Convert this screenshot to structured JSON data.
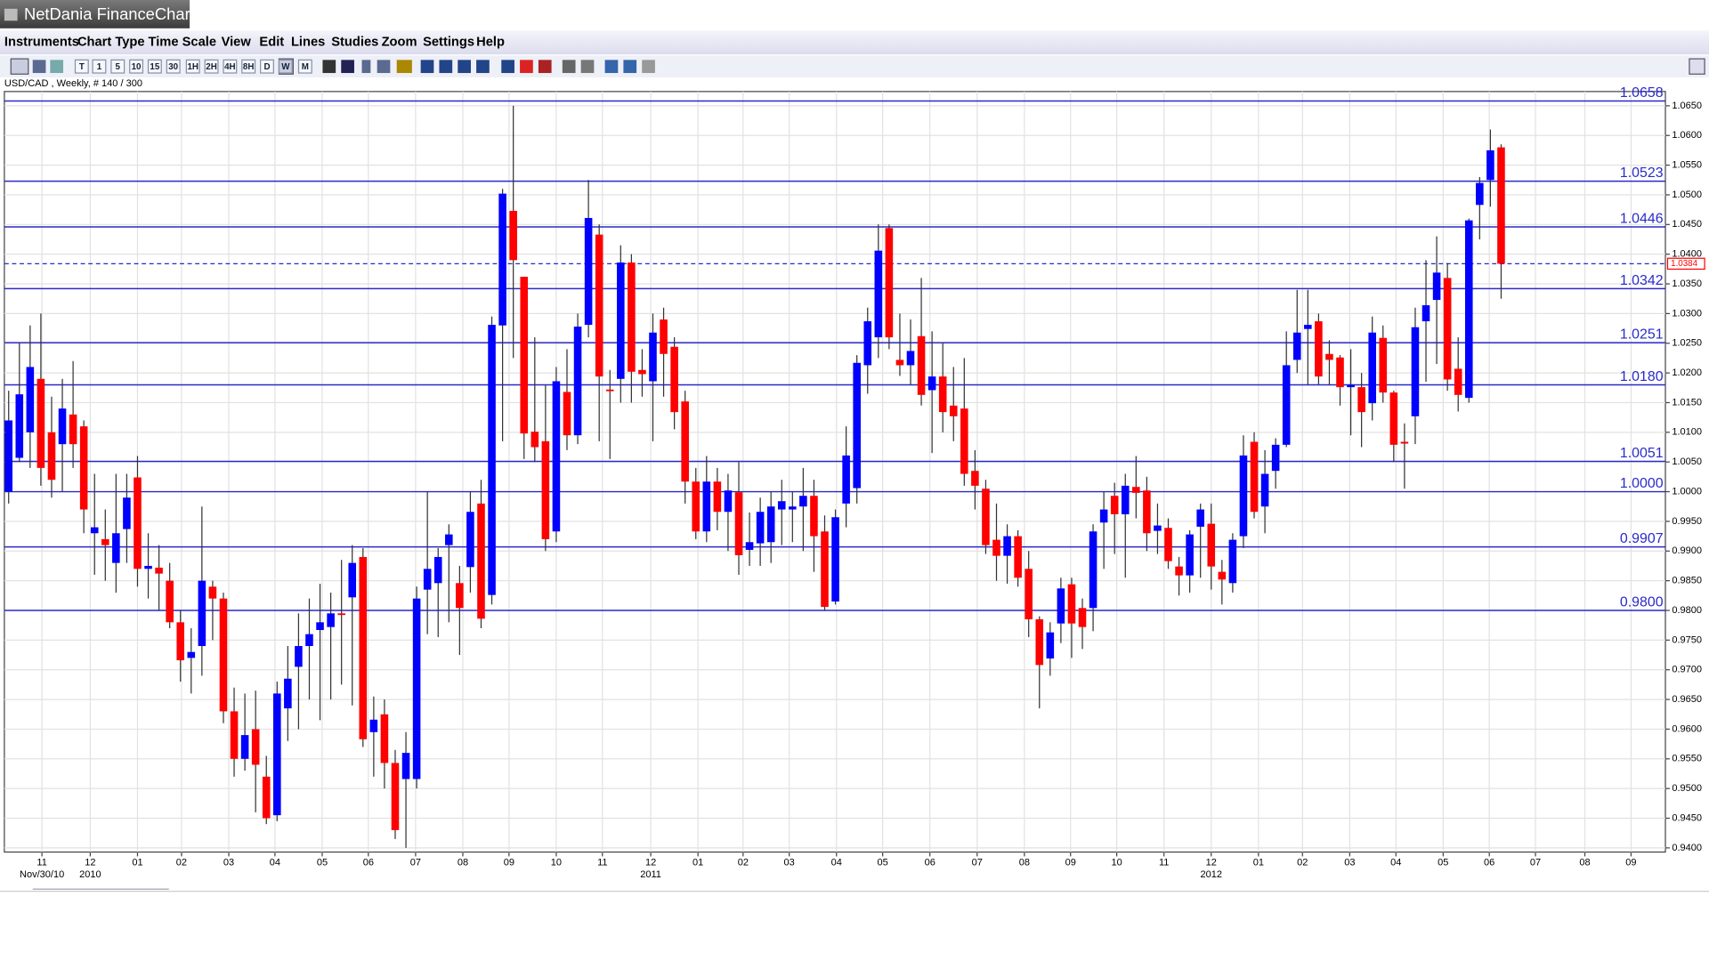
{
  "window_title": "NetDania FinanceChart",
  "menu": [
    "Instruments",
    "Chart Type",
    "Time Scale",
    "View",
    "Edit",
    "Lines",
    "Studies",
    "Zoom",
    "Settings",
    "Help"
  ],
  "toolbar": [
    "T",
    "1",
    "5",
    "10",
    "15",
    "30",
    "1H",
    "2H",
    "4H",
    "8H",
    "D",
    "W",
    "M"
  ],
  "chart_data": {
    "type": "candlestick",
    "subtitle": "USD/CAD , Weekly, # 140 / 300",
    "up_color": "#0000ff",
    "down_color": "#ff0000",
    "level_color": "#2a2ac8",
    "grid": true,
    "open": [
      1.0,
      1.0057,
      1.01,
      1.019,
      1.01,
      1.008,
      1.013,
      1.011,
      0.993,
      0.992,
      0.988,
      0.9937,
      1.0024,
      0.987,
      0.9872,
      0.985,
      0.978,
      0.972,
      0.974,
      0.984,
      0.982,
      0.963,
      0.955,
      0.96,
      0.952,
      0.9455,
      0.9635,
      0.9705,
      0.974,
      0.9767,
      0.9772,
      0.9795,
      0.9822,
      0.989,
      0.9595,
      0.9625,
      0.9543,
      0.9516,
      0.9516,
      0.9835,
      0.9846,
      0.991,
      0.9846,
      0.9873,
      0.998,
      0.9826,
      1.028,
      1.0473,
      1.0362,
      1.0101,
      1.0085,
      0.9933,
      1.0168,
      1.0095,
      1.0281,
      1.0433,
      1.0172,
      1.019,
      1.0386,
      1.0205,
      1.0186,
      1.029,
      1.0244,
      1.0152,
      1.0017,
      0.9933,
      1.0017,
      0.9966,
      0.9999,
      0.9902,
      0.9913,
      0.9915,
      0.997,
      0.997,
      0.9975,
      0.9993,
      0.9933,
      0.9815,
      0.998,
      1.0006,
      1.0213,
      1.026,
      1.0444,
      1.0222,
      1.0213,
      1.0262,
      1.0171,
      1.0194,
      1.0145,
      1.014,
      1.0035,
      1.0005,
      0.9919,
      0.9892,
      0.9925,
      0.987,
      0.9785,
      0.9719,
      0.9778,
      0.9844,
      0.9804,
      0.9804,
      0.9948,
      0.9993,
      0.9962,
      1.0008,
      1.0002,
      0.9934,
      0.9939,
      0.9874,
      0.9859,
      0.9941,
      0.9946,
      0.9865,
      0.9846,
      0.9925,
      1.0084,
      0.9975,
      1.0035,
      1.0079,
      1.0222,
      1.0274,
      1.0287,
      1.0232,
      1.0226,
      1.0176,
      1.0176,
      1.0149,
      1.0259,
      1.0167,
      1.0084,
      1.0127,
      1.0287,
      1.0323,
      1.036,
      1.0207,
      1.0158,
      1.0483,
      1.0525,
      1.058
    ],
    "high": [
      1.017,
      1.025,
      1.028,
      1.03,
      1.016,
      1.019,
      1.022,
      1.012,
      1.003,
      0.997,
      1.003,
      1.003,
      1.006,
      0.993,
      0.991,
      0.988,
      0.98,
      0.977,
      0.9975,
      0.985,
      0.983,
      0.967,
      0.966,
      0.9665,
      0.9555,
      0.968,
      0.974,
      0.9795,
      0.982,
      0.9845,
      0.983,
      0.9885,
      0.991,
      0.9905,
      0.9655,
      0.965,
      0.9565,
      0.9595,
      0.984,
      1.0,
      0.9905,
      0.9945,
      0.9875,
      1.0,
      1.002,
      1.0295,
      1.051,
      1.065,
      1.036,
      1.026,
      1.018,
      1.021,
      1.024,
      1.03,
      1.0525,
      1.045,
      1.0205,
      1.0415,
      1.04,
      1.024,
      1.03,
      1.031,
      1.026,
      1.017,
      1.004,
      1.006,
      1.004,
      1.003,
      1.005,
      0.9965,
      0.999,
      1.0,
      1.002,
      1.0,
      1.004,
      1.002,
      0.996,
      0.997,
      1.011,
      1.023,
      1.031,
      1.045,
      1.045,
      1.03,
      1.029,
      1.036,
      1.027,
      1.025,
      1.021,
      1.0225,
      1.007,
      1.002,
      0.998,
      0.9945,
      0.9935,
      0.99,
      0.979,
      0.978,
      0.9855,
      0.9855,
      0.982,
      0.9945,
      1.0,
      1.0015,
      1.003,
      1.006,
      1.0025,
      0.998,
      0.9955,
      0.989,
      0.9935,
      0.998,
      0.998,
      0.9885,
      0.993,
      1.0095,
      1.01,
      1.007,
      1.009,
      1.027,
      1.034,
      1.034,
      1.03,
      1.0255,
      1.023,
      1.024,
      1.02,
      1.0295,
      1.028,
      1.017,
      1.0115,
      1.031,
      1.039,
      1.043,
      1.0385,
      1.026,
      1.046,
      1.053,
      1.061,
      1.0585
    ],
    "low": [
      0.998,
      1.005,
      1.004,
      1.001,
      0.999,
      1.0,
      1.004,
      0.993,
      0.986,
      0.985,
      0.983,
      0.988,
      0.984,
      0.982,
      0.98,
      0.977,
      0.968,
      0.966,
      0.969,
      0.975,
      0.961,
      0.952,
      0.953,
      0.946,
      0.944,
      0.9445,
      0.958,
      0.96,
      0.965,
      0.9615,
      0.965,
      0.9675,
      0.964,
      0.957,
      0.952,
      0.95,
      0.9415,
      0.94,
      0.95,
      0.976,
      0.9755,
      0.978,
      0.9725,
      0.983,
      0.977,
      0.981,
      1.0085,
      1.0225,
      1.0055,
      1.005,
      0.99,
      0.9915,
      1.007,
      1.008,
      1.026,
      1.0085,
      1.0055,
      1.015,
      1.015,
      1.016,
      1.0085,
      1.016,
      1.0105,
      0.998,
      0.992,
      0.9915,
      0.9935,
      0.99,
      0.986,
      0.9875,
      0.9875,
      0.988,
      0.991,
      0.9915,
      0.99,
      0.9865,
      0.98,
      0.981,
      0.994,
      0.998,
      1.0165,
      1.0225,
      1.024,
      1.0195,
      1.018,
      1.0145,
      1.0065,
      1.01,
      1.0085,
      1.001,
      0.997,
      0.9895,
      0.985,
      0.9845,
      0.984,
      0.9755,
      0.9635,
      0.969,
      0.9745,
      0.972,
      0.9735,
      0.9765,
      0.987,
      0.9895,
      0.9855,
      0.9955,
      0.99,
      0.9895,
      0.987,
      0.9825,
      0.983,
      0.9855,
      0.9835,
      0.981,
      0.983,
      0.9905,
      0.9955,
      0.993,
      1.0005,
      1.0075,
      1.02,
      1.018,
      1.018,
      1.018,
      1.0145,
      1.0095,
      1.0075,
      1.012,
      1.015,
      1.005,
      1.0005,
      1.008,
      1.0185,
      1.0215,
      1.017,
      1.0135,
      1.015,
      1.0425,
      1.048,
      1.0325
    ],
    "close": [
      1.012,
      1.0164,
      1.021,
      1.004,
      1.002,
      1.014,
      1.008,
      0.997,
      0.994,
      0.991,
      0.993,
      0.999,
      0.987,
      0.9875,
      0.9862,
      0.978,
      0.9716,
      0.973,
      0.985,
      0.982,
      0.963,
      0.955,
      0.959,
      0.954,
      0.945,
      0.966,
      0.9685,
      0.974,
      0.976,
      0.978,
      0.9795,
      0.9793,
      0.988,
      0.9583,
      0.9616,
      0.9543,
      0.943,
      0.956,
      0.982,
      0.987,
      0.989,
      0.9928,
      0.9804,
      0.9966,
      0.9786,
      1.0281,
      1.0502,
      1.039,
      1.0098,
      1.0075,
      0.992,
      1.0186,
      1.0095,
      1.0278,
      1.0461,
      1.0194,
      1.017,
      1.0386,
      1.0202,
      1.0198,
      1.0268,
      1.0232,
      1.0134,
      1.0017,
      0.9933,
      1.0017,
      0.9966,
      1.0002,
      0.9893,
      0.9915,
      0.9966,
      0.9975,
      0.9984,
      0.9975,
      0.9993,
      0.9925,
      0.9806,
      0.9957,
      1.0061,
      1.0217,
      1.0287,
      1.0406,
      1.026,
      1.0213,
      1.0237,
      1.0163,
      1.0194,
      1.0134,
      1.0127,
      1.003,
      1.001,
      0.991,
      0.9892,
      0.9925,
      0.9855,
      0.9785,
      0.9708,
      0.9763,
      0.9837,
      0.9778,
      0.9772,
      0.9933,
      0.997,
      0.9962,
      1.001,
      0.9998,
      0.993,
      0.9943,
      0.9883,
      0.9859,
      0.9928,
      0.997,
      0.9874,
      0.9852,
      0.9919,
      1.0061,
      0.9966,
      1.003,
      1.0079,
      1.0213,
      1.0268,
      1.0281,
      1.0194,
      1.0222,
      1.0176,
      1.018,
      1.0134,
      1.0268,
      1.0167,
      1.0079,
      1.0081,
      1.0277,
      1.0314,
      1.0369,
      1.0189,
      1.0163,
      1.0457,
      1.052,
      1.0575,
      1.0384
    ],
    "xlim": [
      -0.4,
      154.3
    ],
    "ylim": [
      0.9393,
      1.0674
    ],
    "yticks": [
      {
        "value": 0.94,
        "label": "0.9400"
      },
      {
        "value": 0.945,
        "label": "0.9450"
      },
      {
        "value": 0.95,
        "label": "0.9500"
      },
      {
        "value": 0.955,
        "label": "0.9550"
      },
      {
        "value": 0.96,
        "label": "0.9600"
      },
      {
        "value": 0.965,
        "label": "0.9650"
      },
      {
        "value": 0.97,
        "label": "0.9700"
      },
      {
        "value": 0.975,
        "label": "0.9750"
      },
      {
        "value": 0.98,
        "label": "0.9800"
      },
      {
        "value": 0.985,
        "label": "0.9850"
      },
      {
        "value": 0.99,
        "label": "0.9900"
      },
      {
        "value": 0.995,
        "label": "0.9950"
      },
      {
        "value": 1.0,
        "label": "1.0000"
      },
      {
        "value": 1.005,
        "label": "1.0050"
      },
      {
        "value": 1.01,
        "label": "1.0100"
      },
      {
        "value": 1.015,
        "label": "1.0150"
      },
      {
        "value": 1.02,
        "label": "1.0200"
      },
      {
        "value": 1.025,
        "label": "1.0250"
      },
      {
        "value": 1.03,
        "label": "1.0300"
      },
      {
        "value": 1.035,
        "label": "1.0350"
      },
      {
        "value": 1.04,
        "label": "1.0400"
      },
      {
        "value": 1.045,
        "label": "1.0450"
      },
      {
        "value": 1.05,
        "label": "1.0500"
      },
      {
        "value": 1.055,
        "label": "1.0550"
      },
      {
        "value": 1.06,
        "label": "1.0600"
      },
      {
        "value": 1.065,
        "label": "1.0650"
      }
    ],
    "xticks": [
      {
        "value": 3.1,
        "label": "11"
      },
      {
        "value": 7.6,
        "label": "12"
      },
      {
        "value": 12.0,
        "label": "01"
      },
      {
        "value": 16.1,
        "label": "02"
      },
      {
        "value": 20.5,
        "label": "03"
      },
      {
        "value": 24.8,
        "label": "04"
      },
      {
        "value": 29.2,
        "label": "05"
      },
      {
        "value": 33.5,
        "label": "06"
      },
      {
        "value": 37.9,
        "label": "07"
      },
      {
        "value": 42.3,
        "label": "08"
      },
      {
        "value": 46.6,
        "label": "09"
      },
      {
        "value": 51.0,
        "label": "10"
      },
      {
        "value": 55.3,
        "label": "11"
      },
      {
        "value": 59.8,
        "label": "12"
      },
      {
        "value": 64.2,
        "label": "01"
      },
      {
        "value": 68.4,
        "label": "02"
      },
      {
        "value": 72.7,
        "label": "03"
      },
      {
        "value": 77.1,
        "label": "04"
      },
      {
        "value": 81.4,
        "label": "05"
      },
      {
        "value": 85.8,
        "label": "06"
      },
      {
        "value": 90.2,
        "label": "07"
      },
      {
        "value": 94.6,
        "label": "08"
      },
      {
        "value": 98.9,
        "label": "09"
      },
      {
        "value": 103.2,
        "label": "10"
      },
      {
        "value": 107.6,
        "label": "11"
      },
      {
        "value": 112.0,
        "label": "12"
      },
      {
        "value": 116.4,
        "label": "01"
      },
      {
        "value": 120.5,
        "label": "02"
      },
      {
        "value": 124.9,
        "label": "03"
      },
      {
        "value": 129.2,
        "label": "04"
      },
      {
        "value": 133.6,
        "label": "05"
      },
      {
        "value": 137.9,
        "label": "06"
      },
      {
        "value": 142.2,
        "label": "07"
      },
      {
        "value": 146.8,
        "label": "08"
      },
      {
        "value": 151.1,
        "label": "09"
      }
    ],
    "xticks_year": [
      {
        "value": 3.1,
        "label": "Nov/30/10"
      },
      {
        "value": 7.6,
        "label": "2010"
      },
      {
        "value": 59.8,
        "label": "2011"
      },
      {
        "value": 112.0,
        "label": "2012"
      }
    ],
    "levels": [
      1.0658,
      1.0523,
      1.0446,
      1.0342,
      1.0251,
      {
        "value": 1.018,
        "label": "1.0180"
      },
      1.0051,
      {
        "value": 1.0,
        "label": "1.0000"
      },
      0.9907,
      {
        "value": 0.98,
        "label": "0.9800"
      }
    ],
    "last_price": {
      "value": 1.0384,
      "label": "1.0384"
    }
  }
}
